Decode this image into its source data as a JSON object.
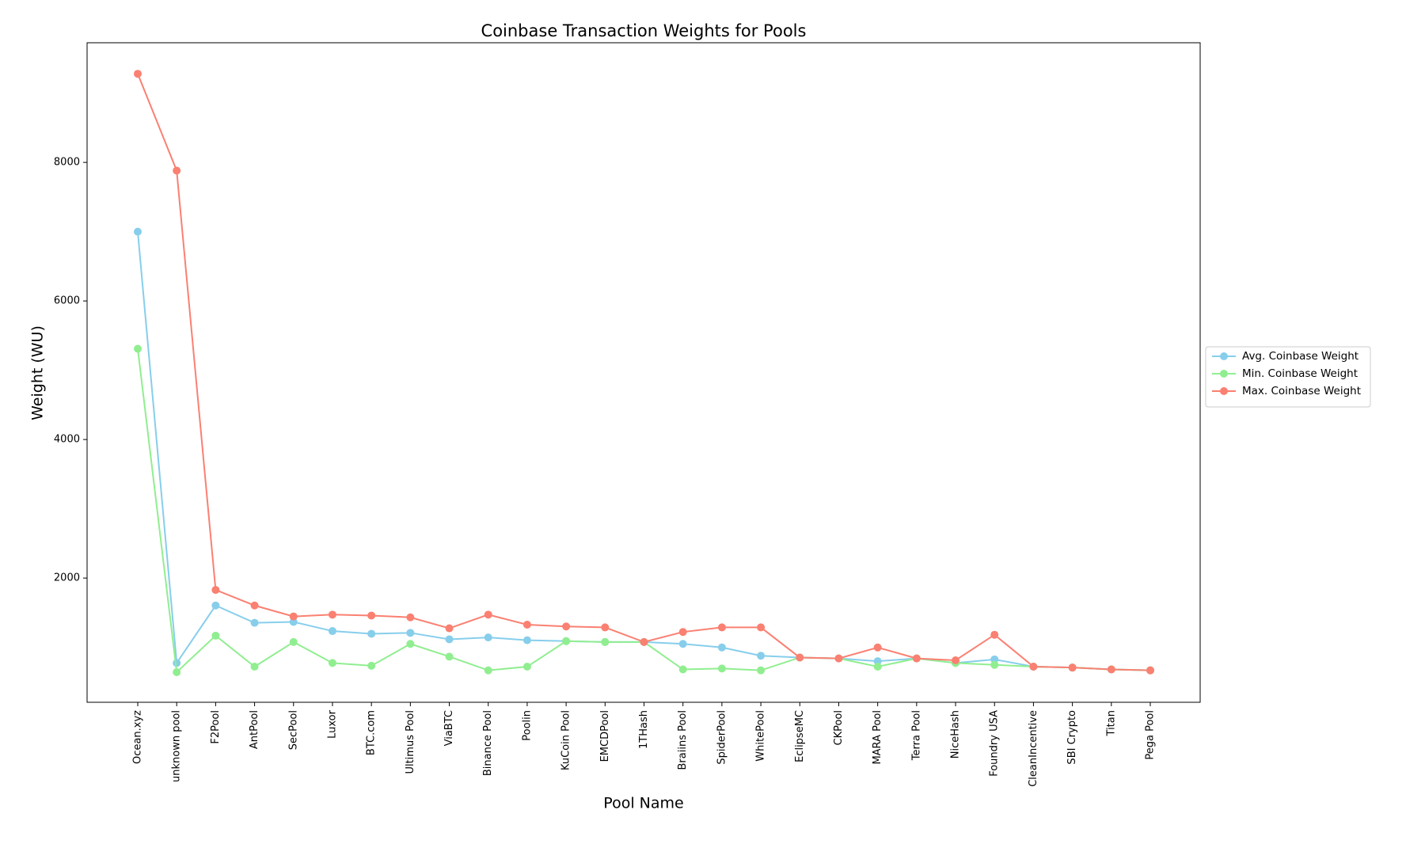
{
  "chart_data": {
    "type": "line",
    "title": "Coinbase Transaction Weights for Pools",
    "x_label": "Pool Name",
    "y_label": "Weight (WU)",
    "categories": [
      "Ocean.xyz",
      "unknown pool",
      "F2Pool",
      "AntPool",
      "SecPool",
      "Luxor",
      "BTC.com",
      "Ultimus Pool",
      "ViaBTC",
      "Binance Pool",
      "Poolin",
      "KuCoin Pool",
      "EMCDPool",
      "1THash",
      "Braiins Pool",
      "SpiderPool",
      "WhitePool",
      "EclipseMC",
      "CKPool",
      "MARA Pool",
      "Terra Pool",
      "NiceHash",
      "Foundry USA",
      "CleanIncentive",
      "SBI Crypto",
      "Titan",
      "Pega Pool"
    ],
    "series": [
      {
        "name": "Avg. Coinbase Weight",
        "color": "#87ceeb",
        "values": [
          7000,
          774,
          1604,
          1354,
          1367,
          1235,
          1196,
          1209,
          1116,
          1143,
          1103,
          1090,
          1077,
          1077,
          1050,
          998,
          879,
          853,
          840,
          800,
          840,
          774,
          826,
          721,
          708,
          681,
          668
        ]
      },
      {
        "name": "Min. Coinbase Weight",
        "color": "#90ee90",
        "values": [
          5310,
          642,
          1169,
          721,
          1077,
          774,
          734,
          1050,
          866,
          668,
          721,
          1090,
          1077,
          1077,
          681,
          694,
          668,
          853,
          840,
          721,
          840,
          774,
          747,
          721,
          708,
          681,
          668
        ]
      },
      {
        "name": "Max. Coinbase Weight",
        "color": "#fa8072",
        "values": [
          9279,
          7881,
          1829,
          1604,
          1446,
          1472,
          1459,
          1433,
          1275,
          1472,
          1327,
          1301,
          1288,
          1077,
          1222,
          1288,
          1288,
          853,
          840,
          998,
          840,
          813,
          1182,
          721,
          708,
          681,
          668
        ]
      }
    ],
    "ylim": [
      207,
      9727
    ],
    "yticks": [
      2000,
      4000,
      6000,
      8000
    ],
    "legend": "center right outside"
  }
}
